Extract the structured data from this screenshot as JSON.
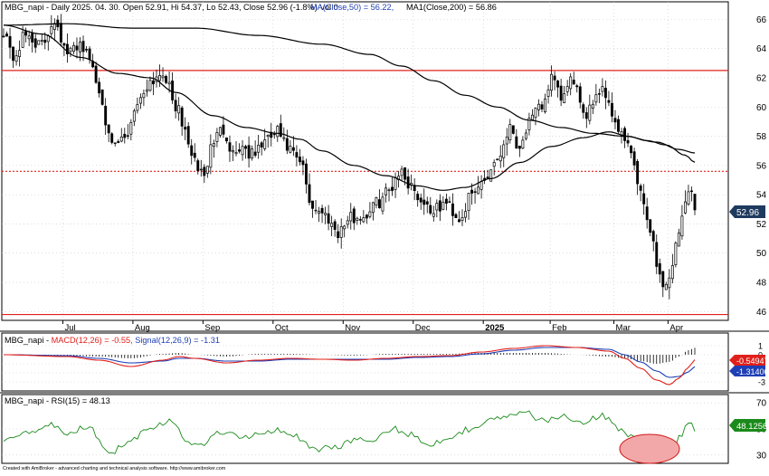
{
  "colors": {
    "candle": "#000000",
    "ma50": "#000000",
    "ma200": "#000000",
    "hline": "#e0201b",
    "macd": "#e0201b",
    "signal": "#1f3fb5",
    "histogram": "#000000",
    "rsi": "#1a8a1a",
    "grid": "#c8c8c8",
    "price_marker": "#1f3a5f",
    "macd_marker": "#e0201b",
    "signal_marker": "#1f3fb5",
    "rsi_marker": "#1a8a1a",
    "highlight_fill": "#f2a8a8",
    "highlight_stroke": "#d01818"
  },
  "chart_data": [
    {
      "type": "candlestick",
      "title_line": "MBG_napi - Daily 2025. 04. 30. Open 52.91, Hi 54.37, Lo 52.43, Close 52.96 (-1.8%) Vol 0",
      "ma_label": "MA(Close,50) = 56.22,",
      "ma200_label": "MA1(Close,200) = 56.86",
      "ylim": [
        45.4,
        67.2
      ],
      "y_ticks": [
        "46",
        "48",
        "50",
        "52",
        "54",
        "56",
        "58",
        "60",
        "62",
        "64",
        "66"
      ],
      "x_labels": [
        "Jul",
        "Aug",
        "Sep",
        "Oct",
        "Nov",
        "Dec",
        "2025",
        "Feb",
        "Mar",
        "Apr"
      ],
      "last_price_label": "52.96",
      "horizontal_lines": [
        {
          "value": 62.5,
          "style": "solid"
        },
        {
          "value": 55.6,
          "style": "dotted"
        },
        {
          "value": 45.8,
          "style": "solid"
        }
      ],
      "close_anchors": [
        [
          0,
          65.3
        ],
        [
          3,
          63.4
        ],
        [
          7,
          64.9
        ],
        [
          12,
          64.2
        ],
        [
          16,
          66.0
        ],
        [
          20,
          63.6
        ],
        [
          24,
          64.4
        ],
        [
          27,
          63.3
        ],
        [
          30,
          61.2
        ],
        [
          34,
          57.2
        ],
        [
          38,
          57.8
        ],
        [
          42,
          60.3
        ],
        [
          46,
          61.8
        ],
        [
          50,
          62.4
        ],
        [
          54,
          60.1
        ],
        [
          57,
          58.3
        ],
        [
          60,
          56.1
        ],
        [
          63,
          55.4
        ],
        [
          66,
          57.8
        ],
        [
          69,
          58.5
        ],
        [
          72,
          56.9
        ],
        [
          75,
          57.3
        ],
        [
          78,
          56.7
        ],
        [
          82,
          57.6
        ],
        [
          86,
          58.3
        ],
        [
          89,
          57.2
        ],
        [
          93,
          56.2
        ],
        [
          97,
          53.2
        ],
        [
          101,
          52.6
        ],
        [
          105,
          51.5
        ],
        [
          109,
          52.4
        ],
        [
          113,
          52.5
        ],
        [
          117,
          53.4
        ],
        [
          121,
          54.3
        ],
        [
          124,
          55.6
        ],
        [
          128,
          54.7
        ],
        [
          131,
          53.6
        ],
        [
          135,
          52.9
        ],
        [
          139,
          53.4
        ],
        [
          143,
          52.4
        ],
        [
          147,
          53.9
        ],
        [
          151,
          55.1
        ],
        [
          155,
          56.5
        ],
        [
          159,
          58.6
        ],
        [
          162,
          57.3
        ],
        [
          165,
          58.9
        ],
        [
          169,
          60.1
        ],
        [
          172,
          61.9
        ],
        [
          175,
          60.6
        ],
        [
          179,
          61.9
        ],
        [
          182,
          59.2
        ],
        [
          185,
          60.6
        ],
        [
          188,
          61.4
        ],
        [
          191,
          59.6
        ],
        [
          194,
          58.1
        ],
        [
          197,
          56.8
        ],
        [
          200,
          53.9
        ],
        [
          203,
          51.8
        ],
        [
          205,
          49.4
        ],
        [
          207,
          47.6
        ],
        [
          209,
          48.4
        ],
        [
          211,
          50.4
        ],
        [
          213,
          52.4
        ],
        [
          215,
          54.6
        ],
        [
          216,
          54.1
        ],
        [
          217,
          52.96
        ]
      ],
      "ma50_anchors": [
        [
          0,
          65.6
        ],
        [
          12,
          65.0
        ],
        [
          24,
          63.4
        ],
        [
          36,
          62.3
        ],
        [
          46,
          62.0
        ],
        [
          54,
          61.0
        ],
        [
          66,
          59.4
        ],
        [
          76,
          58.6
        ],
        [
          86,
          58.2
        ],
        [
          93,
          57.8
        ],
        [
          100,
          57.0
        ],
        [
          110,
          56.0
        ],
        [
          120,
          55.3
        ],
        [
          130,
          54.6
        ],
        [
          138,
          54.3
        ],
        [
          145,
          54.5
        ],
        [
          153,
          55.1
        ],
        [
          162,
          56.2
        ],
        [
          172,
          57.3
        ],
        [
          182,
          57.9
        ],
        [
          190,
          58.3
        ],
        [
          196,
          58.0
        ],
        [
          202,
          57.7
        ],
        [
          208,
          57.4
        ],
        [
          214,
          56.7
        ],
        [
          217,
          56.22
        ]
      ],
      "ma200_anchors": [
        [
          0,
          65.6
        ],
        [
          20,
          65.7
        ],
        [
          40,
          65.4
        ],
        [
          60,
          65.4
        ],
        [
          80,
          64.9
        ],
        [
          100,
          64.3
        ],
        [
          115,
          63.6
        ],
        [
          125,
          62.8
        ],
        [
          135,
          61.8
        ],
        [
          145,
          60.8
        ],
        [
          155,
          60.0
        ],
        [
          165,
          59.1
        ],
        [
          175,
          58.6
        ],
        [
          185,
          58.2
        ],
        [
          195,
          58.0
        ],
        [
          205,
          57.6
        ],
        [
          212,
          57.1
        ],
        [
          217,
          56.86
        ]
      ]
    },
    {
      "type": "line",
      "label": "MBG_napi - MACD(12,26) = -0.55, Signal(12,26,9) = -1.31",
      "ylim": [
        -4,
        2.2
      ],
      "y_ticks": [
        "1",
        "0",
        "-1",
        "-2",
        "-3"
      ],
      "macd_marker_label": "-0.54947",
      "signal_marker_label": "-1.31406",
      "series": [
        {
          "name": "MACD(12,26)",
          "anchors": [
            [
              0,
              0.0
            ],
            [
              20,
              -0.2
            ],
            [
              30,
              -0.6
            ],
            [
              40,
              -1.3
            ],
            [
              50,
              -0.6
            ],
            [
              55,
              -0.2
            ],
            [
              60,
              -0.4
            ],
            [
              70,
              -0.9
            ],
            [
              80,
              -0.6
            ],
            [
              90,
              -0.4
            ],
            [
              100,
              -0.5
            ],
            [
              110,
              -0.6
            ],
            [
              120,
              -0.4
            ],
            [
              130,
              -0.2
            ],
            [
              140,
              -0.1
            ],
            [
              150,
              0.3
            ],
            [
              160,
              0.7
            ],
            [
              170,
              1.0
            ],
            [
              180,
              0.8
            ],
            [
              190,
              0.4
            ],
            [
              195,
              -0.4
            ],
            [
              200,
              -1.5
            ],
            [
              205,
              -2.8
            ],
            [
              209,
              -3.3
            ],
            [
              212,
              -2.6
            ],
            [
              215,
              -1.4
            ],
            [
              217,
              -0.55
            ]
          ]
        },
        {
          "name": "Signal(12,26,9)",
          "anchors": [
            [
              0,
              0.0
            ],
            [
              20,
              -0.1
            ],
            [
              30,
              -0.4
            ],
            [
              40,
              -0.9
            ],
            [
              50,
              -0.7
            ],
            [
              55,
              -0.4
            ],
            [
              60,
              -0.4
            ],
            [
              70,
              -0.7
            ],
            [
              80,
              -0.7
            ],
            [
              90,
              -0.5
            ],
            [
              100,
              -0.5
            ],
            [
              110,
              -0.5
            ],
            [
              120,
              -0.5
            ],
            [
              130,
              -0.3
            ],
            [
              140,
              -0.2
            ],
            [
              150,
              0.1
            ],
            [
              160,
              0.5
            ],
            [
              170,
              0.8
            ],
            [
              180,
              0.8
            ],
            [
              190,
              0.6
            ],
            [
              195,
              0.0
            ],
            [
              200,
              -0.8
            ],
            [
              205,
              -1.8
            ],
            [
              209,
              -2.5
            ],
            [
              212,
              -2.4
            ],
            [
              215,
              -1.9
            ],
            [
              217,
              -1.31
            ]
          ]
        }
      ]
    },
    {
      "type": "line",
      "label": "MBG_napi - RSI(15) = 48.13",
      "ylim": [
        25,
        75
      ],
      "y_ticks": [
        "70",
        "50",
        "30"
      ],
      "rsi_marker_label": "48.1256",
      "series": [
        {
          "name": "RSI(15)",
          "anchors": [
            [
              0,
              43
            ],
            [
              8,
              48
            ],
            [
              14,
              54
            ],
            [
              20,
              46
            ],
            [
              26,
              52
            ],
            [
              34,
              33
            ],
            [
              40,
              42
            ],
            [
              46,
              52
            ],
            [
              52,
              56
            ],
            [
              58,
              40
            ],
            [
              62,
              38
            ],
            [
              68,
              48
            ],
            [
              74,
              44
            ],
            [
              80,
              46
            ],
            [
              86,
              50
            ],
            [
              92,
              44
            ],
            [
              98,
              34
            ],
            [
              104,
              36
            ],
            [
              110,
              42
            ],
            [
              116,
              40
            ],
            [
              122,
              50
            ],
            [
              128,
              46
            ],
            [
              134,
              38
            ],
            [
              140,
              44
            ],
            [
              146,
              50
            ],
            [
              152,
              56
            ],
            [
              158,
              60
            ],
            [
              164,
              62
            ],
            [
              170,
              56
            ],
            [
              176,
              60
            ],
            [
              182,
              56
            ],
            [
              188,
              60
            ],
            [
              194,
              50
            ],
            [
              198,
              42
            ],
            [
              202,
              36
            ],
            [
              206,
              30
            ],
            [
              210,
              34
            ],
            [
              213,
              46
            ],
            [
              215,
              56
            ],
            [
              217,
              48.13
            ]
          ]
        }
      ]
    }
  ],
  "highlight": {
    "name": "oversold-ellipse"
  },
  "footer": {
    "text": "Created with AmiBroker - advanced charting and technical analysis software. http://www.amibroker.com"
  }
}
